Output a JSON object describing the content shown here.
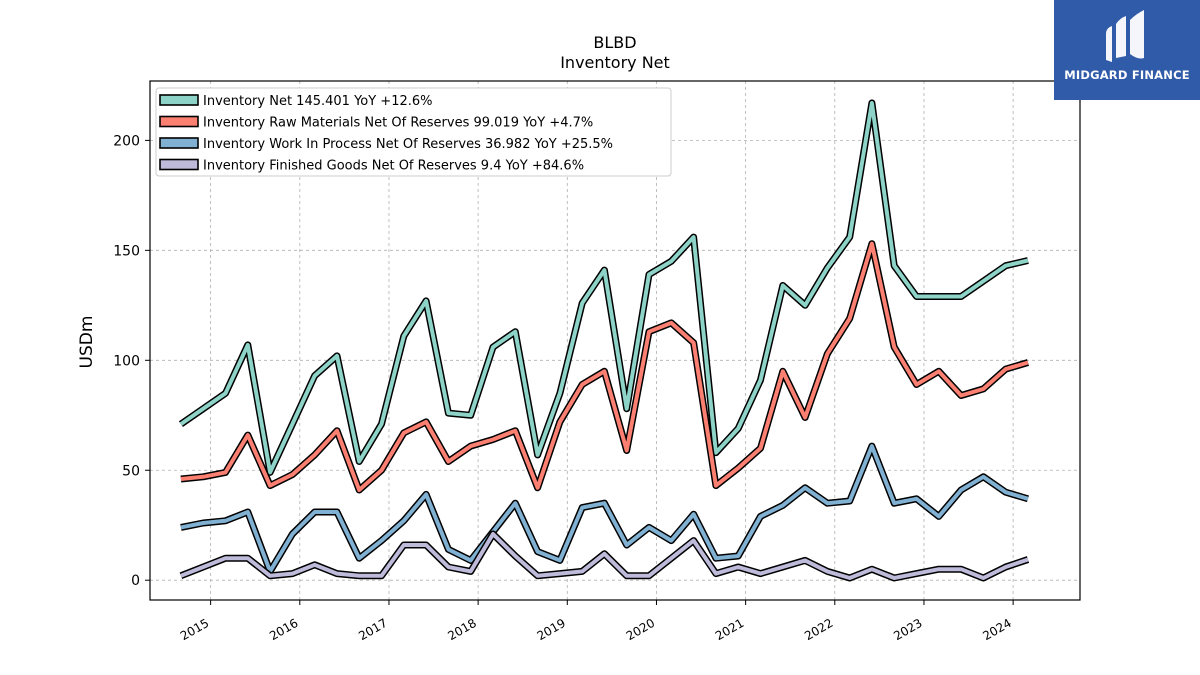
{
  "brand": {
    "name": "MIDGARD FINANCE",
    "bg_color": "#2f5ba9"
  },
  "chart_data": {
    "type": "line",
    "title": "BLBD",
    "subtitle": "Inventory Net",
    "ylabel": "USDm",
    "xlabel": "",
    "ylim": [
      -9,
      227
    ],
    "xlim": [
      2014.32,
      2024.75
    ],
    "yticks": [
      0,
      50,
      100,
      150,
      200
    ],
    "xticks": [
      "2015",
      "2016",
      "2017",
      "2018",
      "2019",
      "2020",
      "2021",
      "2022",
      "2023",
      "2024"
    ],
    "grid": true,
    "legend_position": "top-left",
    "x": [
      "2014-09",
      "2014-12",
      "2015-03",
      "2015-06",
      "2015-09",
      "2015-12",
      "2016-03",
      "2016-06",
      "2016-09",
      "2016-12",
      "2017-03",
      "2017-06",
      "2017-09",
      "2017-12",
      "2018-03",
      "2018-06",
      "2018-09",
      "2018-12",
      "2019-03",
      "2019-06",
      "2019-09",
      "2019-12",
      "2020-03",
      "2020-06",
      "2020-09",
      "2020-12",
      "2021-03",
      "2021-06",
      "2021-09",
      "2021-12",
      "2022-03",
      "2022-06",
      "2022-09",
      "2022-12",
      "2023-03",
      "2023-06",
      "2023-09",
      "2023-12",
      "2024-03"
    ],
    "series": [
      {
        "name": "Inventory Net  145.401 YoY +12.6%",
        "color": "#8dd3c7",
        "values": [
          71,
          78,
          85,
          107,
          49,
          71,
          93,
          102,
          54,
          71,
          111,
          127,
          76,
          75,
          106,
          113,
          57,
          85,
          126,
          141,
          78,
          139,
          145,
          156,
          58,
          69,
          91,
          134,
          125,
          142,
          156,
          217,
          143,
          129,
          129,
          129,
          136,
          143,
          145.4
        ]
      },
      {
        "name": "Inventory Raw Materials Net Of Reserves  99.019 YoY +4.7%",
        "color": "#fb8072",
        "values": [
          46,
          47,
          49,
          66,
          43,
          48,
          57,
          68,
          41,
          50,
          67,
          72,
          54,
          61,
          64,
          68,
          42,
          72,
          89,
          95,
          59,
          113,
          117,
          108,
          43,
          51,
          60,
          95,
          74,
          103,
          119,
          153,
          106,
          89,
          95,
          84,
          87,
          96,
          99.0
        ]
      },
      {
        "name": "Inventory Work In Process Net Of Reserves  36.982 YoY +25.5%",
        "color": "#80b1d3",
        "values": [
          24,
          26,
          27,
          31,
          4,
          21,
          31,
          31,
          10,
          18,
          27,
          39,
          14,
          9,
          22,
          35,
          13,
          9,
          33,
          35,
          16,
          24,
          18,
          30,
          10,
          11,
          29,
          34,
          42,
          35,
          36,
          61,
          35,
          37,
          29,
          41,
          47,
          40,
          37.0
        ]
      },
      {
        "name": "Inventory Finished Goods Net Of Reserves  9.4 YoY +84.6%",
        "color": "#bebada",
        "values": [
          2,
          6,
          10,
          10,
          2,
          3,
          7,
          3,
          2,
          2,
          16,
          16,
          6,
          4,
          21,
          11,
          2,
          3,
          4,
          12,
          2,
          2,
          10,
          18,
          3,
          6,
          3,
          6,
          9,
          4,
          1,
          5,
          1,
          3,
          5,
          5,
          1,
          6,
          9.4
        ]
      }
    ]
  }
}
